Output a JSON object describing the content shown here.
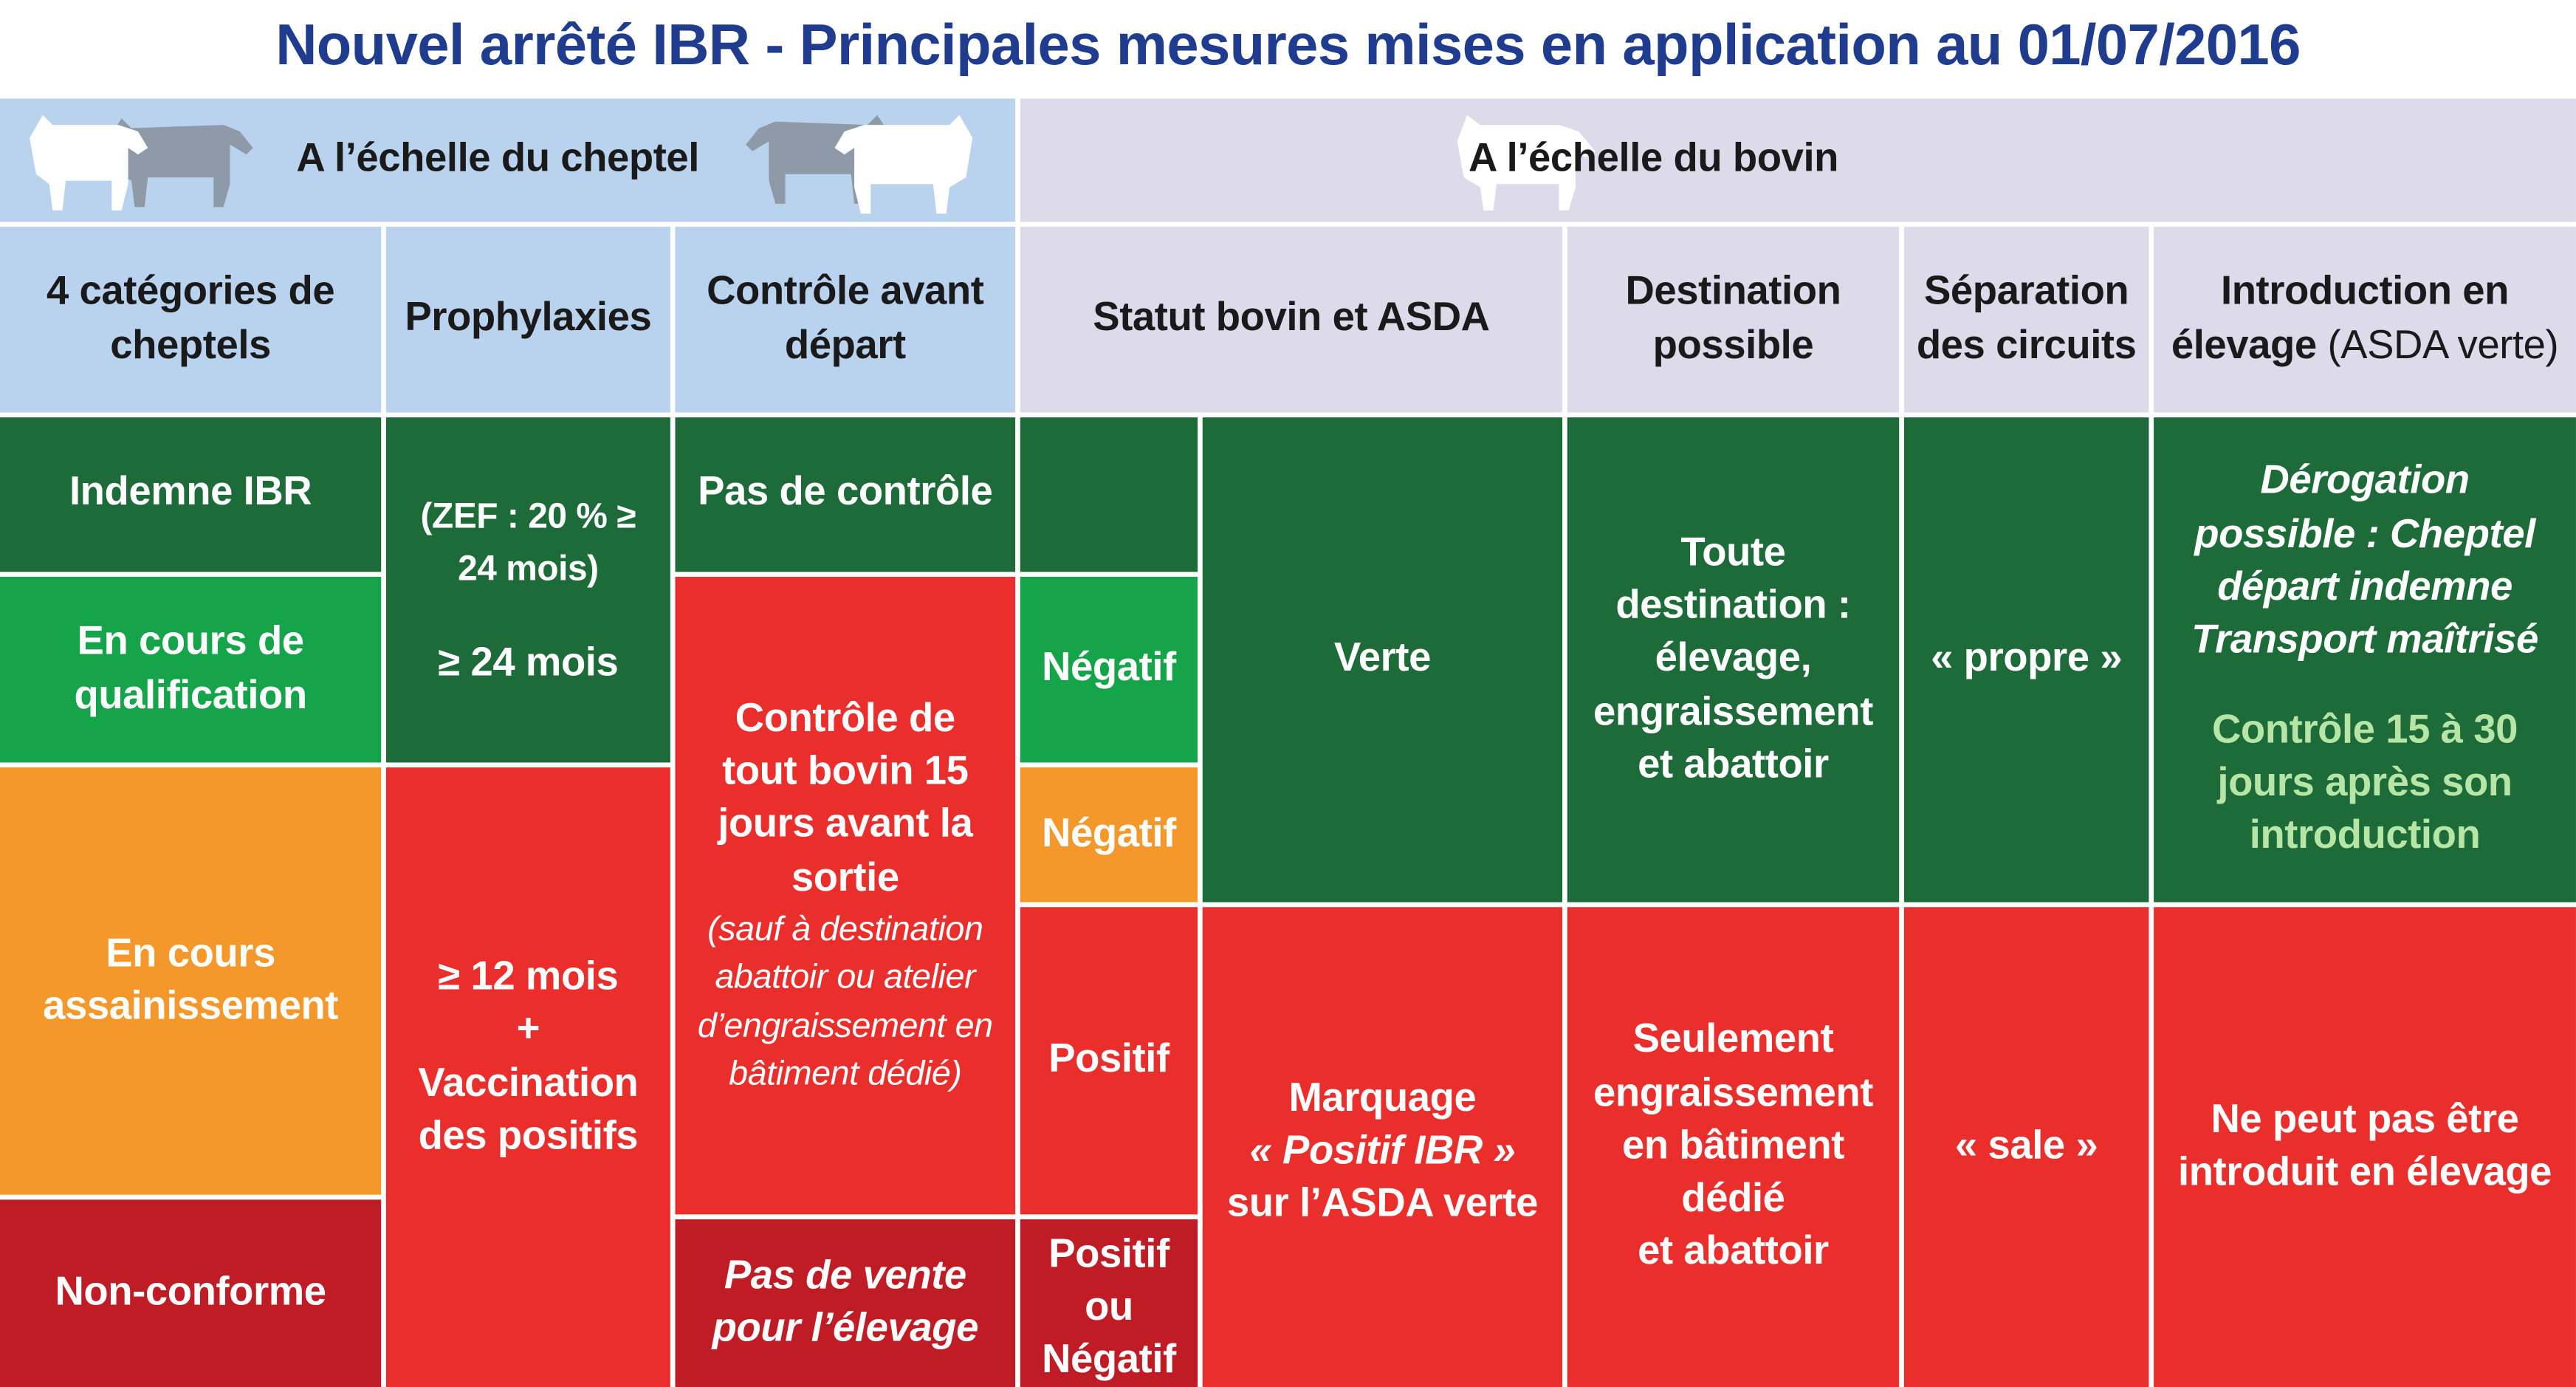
{
  "title": "Nouvel arrêté IBR - Principales mesures mises en application au 01/07/2016",
  "sections": {
    "cheptel": "A l’échelle du cheptel",
    "bovin": "A l’échelle du bovin"
  },
  "headers": {
    "categories": "4 catégories  de cheptels",
    "prophylaxies": "Prophylaxies",
    "controle": "Contrôle avant départ",
    "statut": "Statut bovin et ASDA",
    "destination": "Destination possible",
    "separation": "Séparation des circuits",
    "introduction_bold": "Introduction en élevage",
    "introduction_normal": " (ASDA verte)"
  },
  "categories": {
    "indemne": "Indemne IBR",
    "qualification": "En cours de qualification",
    "assainissement": "En cours assainissement",
    "nonconforme": "Non-conforme"
  },
  "prophylaxies": {
    "zef": "(ZEF : 20 % ≥ 24 mois)",
    "age24": "≥ 24 mois",
    "age12": "≥ 12 mois",
    "plus": "+",
    "vaccination": "Vaccination des positifs"
  },
  "controle": {
    "pas": "Pas de contrôle",
    "main": "Contrôle de tout bovin 15 jours avant la sortie",
    "note": "(sauf à destination abattoir ou atelier d’engraissement en bâtiment dédié)",
    "pasvente": "Pas de vente pour l’élevage"
  },
  "statut": {
    "negatif1": "Négatif",
    "negatif2": "Négatif",
    "positif": "Positif",
    "positif_ou_negatif": "Positif ou Négatif",
    "verte": "Verte",
    "marquage": "Marquage",
    "positif_ibr": "« Positif IBR »",
    "sur_asda": "sur l’ASDA verte"
  },
  "destination": {
    "toute": "Toute destination : élevage, engraissement et abattoir",
    "seulement": "Seulement engraissement en bâtiment dédié",
    "abattoir": "et abattoir"
  },
  "separation": {
    "propre": "« propre »",
    "sale": "« sale »"
  },
  "introduction": {
    "derogation": "Dérogation possible : Cheptel départ indemne Transport maîtrisé",
    "controle": "Contrôle 15 à 30 jours après son introduction",
    "nepeut": "Ne peut pas être introduit en élevage"
  },
  "colors": {
    "title": "#1f3c8f",
    "dark_green": "#1d6b39",
    "green": "#16a44a",
    "orange": "#f5982b",
    "red": "#e92e2c",
    "dark_red": "#c01c25",
    "header_blue": "#b9d3ef",
    "header_lavender": "#dddaea"
  },
  "icons": [
    "cow-icon"
  ]
}
